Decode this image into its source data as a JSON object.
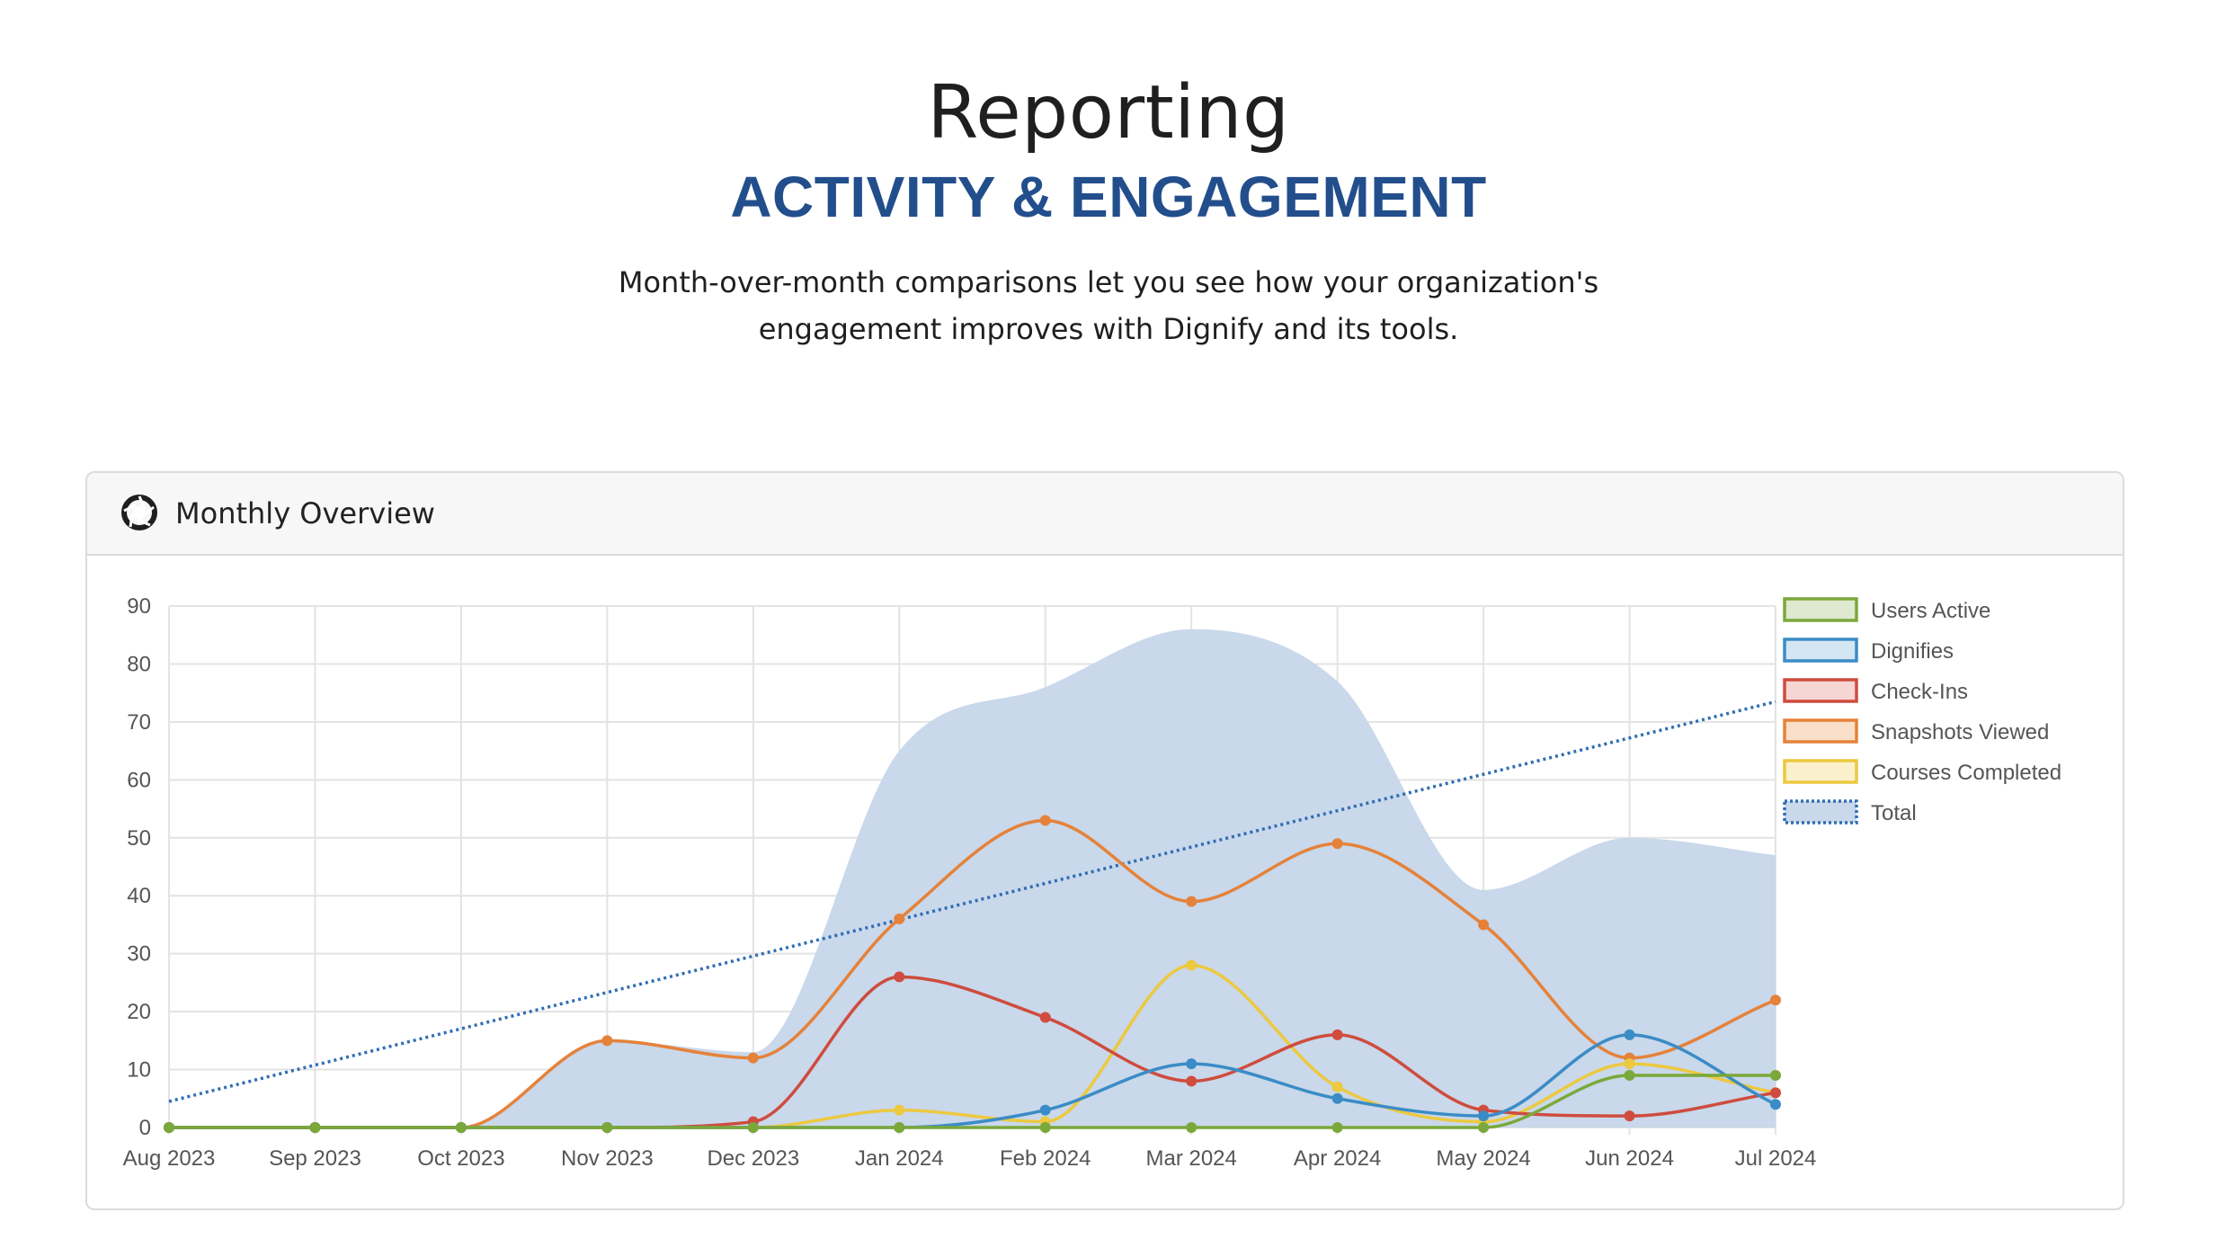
{
  "hero": {
    "title": "Reporting",
    "subtitle": "ACTIVITY & ENGAGEMENT",
    "description_line1": "Month-over-month comparisons let you see how your organization's",
    "description_line2": "engagement improves with Dignify and its tools."
  },
  "card": {
    "title": "Monthly Overview",
    "icon": "aperture-icon"
  },
  "chart_data": {
    "type": "line",
    "x": [
      "Aug 2023",
      "Sep 2023",
      "Oct 2023",
      "Nov 2023",
      "Dec 2023",
      "Jan 2024",
      "Feb 2024",
      "Mar 2024",
      "Apr 2024",
      "May 2024",
      "Jun 2024",
      "Jul 2024"
    ],
    "ylim": [
      0,
      90
    ],
    "yticks": [
      0,
      10,
      20,
      30,
      40,
      50,
      60,
      70,
      80,
      90
    ],
    "grid": true,
    "legend_position": "right",
    "series": [
      {
        "name": "Users Active",
        "color": "#7aa83a",
        "fill": "#dfe9cf",
        "values": [
          0,
          0,
          0,
          0,
          0,
          0,
          0,
          0,
          0,
          0,
          9,
          9
        ]
      },
      {
        "name": "Dignifies",
        "color": "#3b8cc6",
        "fill": "#d4e6f3",
        "values": [
          0,
          0,
          0,
          0,
          0,
          0,
          3,
          11,
          5,
          2,
          16,
          4
        ]
      },
      {
        "name": "Check-Ins",
        "color": "#cf4c3e",
        "fill": "#f5d6d2",
        "values": [
          0,
          0,
          0,
          0,
          1,
          26,
          19,
          8,
          16,
          3,
          2,
          6
        ]
      },
      {
        "name": "Snapshots Viewed",
        "color": "#e5823a",
        "fill": "#f9dfc9",
        "values": [
          0,
          0,
          0,
          15,
          12,
          36,
          53,
          39,
          49,
          35,
          12,
          22
        ]
      },
      {
        "name": "Courses Completed",
        "color": "#ecc93f",
        "fill": "#faf1cc",
        "values": [
          0,
          0,
          0,
          0,
          0,
          3,
          1,
          28,
          7,
          1,
          11,
          6
        ]
      },
      {
        "name": "Total",
        "color": "#2f6db5",
        "fill": "#c9d8ea",
        "style": "dotted",
        "values": [
          0,
          0,
          0,
          15,
          13,
          65,
          76,
          86,
          77,
          41,
          50,
          47
        ]
      }
    ],
    "trendline": {
      "series": "Total",
      "start": 4.5,
      "end": 73.5
    }
  }
}
